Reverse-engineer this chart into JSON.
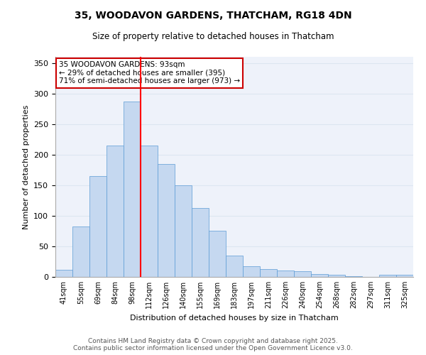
{
  "title_line1": "35, WOODAVON GARDENS, THATCHAM, RG18 4DN",
  "title_line2": "Size of property relative to detached houses in Thatcham",
  "xlabel": "Distribution of detached houses by size in Thatcham",
  "ylabel": "Number of detached properties",
  "categories": [
    "41sqm",
    "55sqm",
    "69sqm",
    "84sqm",
    "98sqm",
    "112sqm",
    "126sqm",
    "140sqm",
    "155sqm",
    "169sqm",
    "183sqm",
    "197sqm",
    "211sqm",
    "226sqm",
    "240sqm",
    "254sqm",
    "268sqm",
    "282sqm",
    "297sqm",
    "311sqm",
    "325sqm"
  ],
  "values": [
    12,
    83,
    165,
    215,
    287,
    215,
    185,
    150,
    113,
    75,
    35,
    18,
    13,
    11,
    9,
    5,
    4,
    1,
    0,
    3,
    4
  ],
  "bar_color": "#c5d8f0",
  "bar_edge_color": "#5b9bd5",
  "grid_color": "#dce6f1",
  "background_color": "#eef2fa",
  "red_line_x": 4.5,
  "annotation_text": "35 WOODAVON GARDENS: 93sqm\n← 29% of detached houses are smaller (395)\n71% of semi-detached houses are larger (973) →",
  "annotation_box_color": "#ffffff",
  "annotation_box_edge": "#cc0000",
  "footer_line1": "Contains HM Land Registry data © Crown copyright and database right 2025.",
  "footer_line2": "Contains public sector information licensed under the Open Government Licence v3.0.",
  "ylim": [
    0,
    360
  ],
  "yticks": [
    0,
    50,
    100,
    150,
    200,
    250,
    300,
    350
  ]
}
